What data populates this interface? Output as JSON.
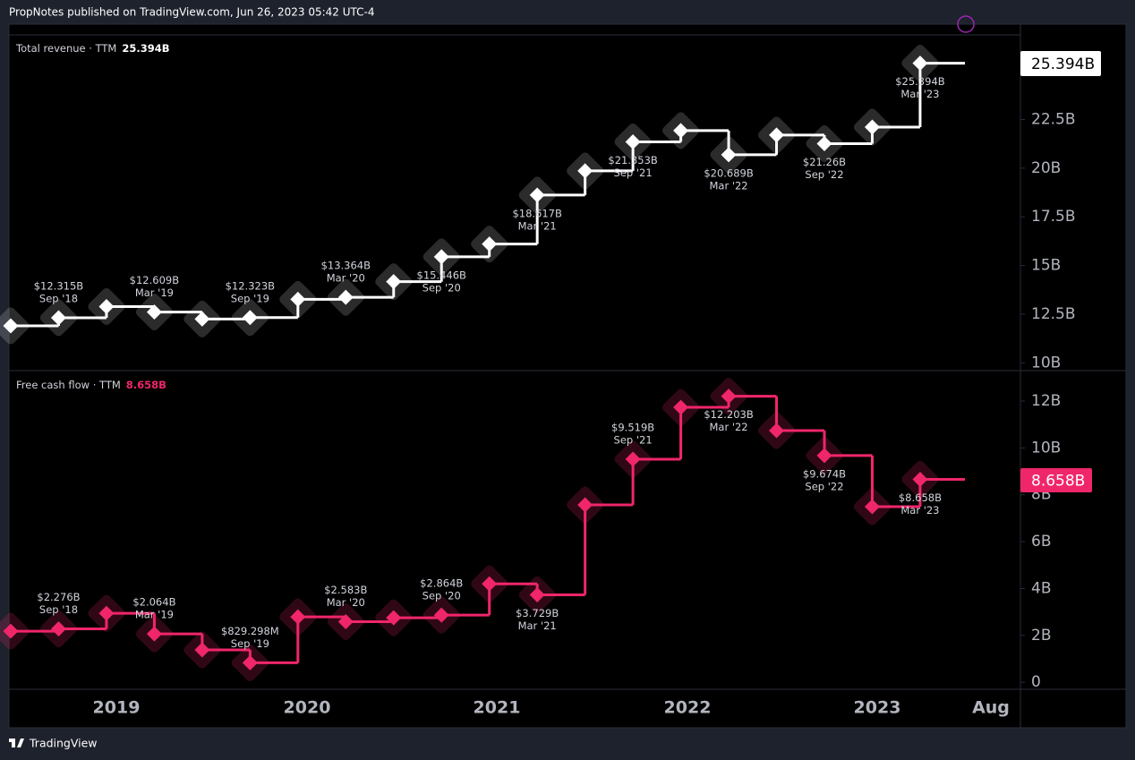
{
  "header": {
    "text": "PropNotes published on TradingView.com, Jun 26, 2023 05:42 UTC-4"
  },
  "footer": {
    "brand": "TradingView"
  },
  "x_axis_labels": [
    "2019",
    "2020",
    "2021",
    "2022",
    "2023",
    "Aug"
  ],
  "chart_data": [
    {
      "type": "line",
      "step": true,
      "title": "Total revenue · TTM",
      "last_value_label": "25.394B",
      "color": "#ffffff",
      "categories": [
        null,
        "Sep '18",
        null,
        "Mar '19",
        null,
        "Sep '19",
        null,
        "Mar '20",
        null,
        "Sep '20",
        null,
        "Mar '21",
        null,
        "Sep '21",
        null,
        "Mar '22",
        null,
        "Sep '22",
        null,
        "Mar '23"
      ],
      "values": [
        11.9,
        12.315,
        12.89,
        12.609,
        12.25,
        12.323,
        13.26,
        13.364,
        14.17,
        15.446,
        16.1,
        18.617,
        19.86,
        21.353,
        21.93,
        20.689,
        21.7,
        21.26,
        22.11,
        25.394
      ],
      "value_labels": [
        null,
        "$12.315B",
        null,
        "$12.609B",
        null,
        "$12.323B",
        null,
        "$13.364B",
        null,
        "$15.446B",
        null,
        "$18.617B",
        null,
        "$21.353B",
        null,
        "$20.689B",
        null,
        "$21.26B",
        null,
        "$25.394B"
      ],
      "ylim": [
        9.6,
        26.8
      ],
      "yticks": [
        {
          "value": 10,
          "label": "10B"
        },
        {
          "value": 12.5,
          "label": "12.5B"
        },
        {
          "value": 15,
          "label": "15B"
        },
        {
          "value": 17.5,
          "label": "17.5B"
        },
        {
          "value": 20,
          "label": "20B"
        },
        {
          "value": 22.5,
          "label": "22.5B"
        }
      ]
    },
    {
      "type": "line",
      "step": true,
      "title": "Free cash flow · TTM",
      "last_value_label": "8.658B",
      "color": "#f0266a",
      "categories": [
        null,
        "Sep '18",
        null,
        "Mar '19",
        null,
        "Sep '19",
        null,
        "Mar '20",
        null,
        "Sep '20",
        null,
        "Mar '21",
        null,
        "Sep '21",
        null,
        "Mar '22",
        null,
        "Sep '22",
        null,
        "Mar '23"
      ],
      "values": [
        2.18,
        2.276,
        2.94,
        2.064,
        1.38,
        0.829298,
        2.79,
        2.583,
        2.75,
        2.864,
        4.2,
        3.729,
        7.57,
        9.519,
        11.73,
        12.203,
        10.74,
        9.674,
        7.49,
        8.658
      ],
      "value_labels": [
        null,
        "$2.276B",
        null,
        "$2.064B",
        null,
        "$829.298M",
        null,
        "$2.583B",
        null,
        "$2.864B",
        null,
        "$3.729B",
        null,
        "$9.519B",
        null,
        "$12.203B",
        null,
        "$9.674B",
        null,
        "$8.658B"
      ],
      "ylim": [
        -0.3,
        13.26
      ],
      "yticks": [
        {
          "value": 0,
          "label": "0"
        },
        {
          "value": 2,
          "label": "2B"
        },
        {
          "value": 4,
          "label": "4B"
        },
        {
          "value": 6,
          "label": "6B"
        },
        {
          "value": 8,
          "label": "8B"
        },
        {
          "value": 10,
          "label": "10B"
        },
        {
          "value": 12,
          "label": "12B"
        }
      ]
    }
  ]
}
